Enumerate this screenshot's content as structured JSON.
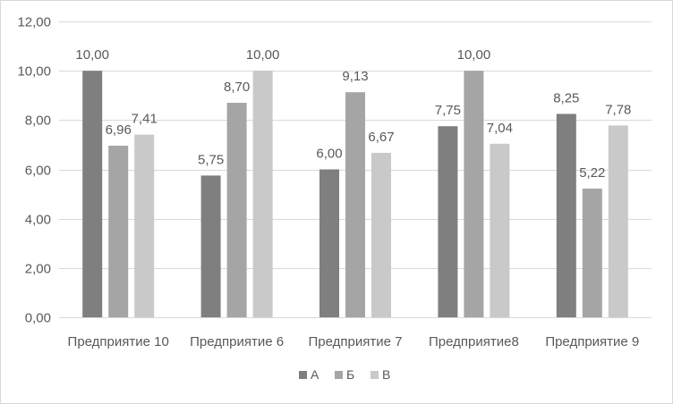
{
  "chart_data": {
    "type": "bar",
    "title": "",
    "xlabel": "",
    "ylabel": "",
    "categories": [
      "Предприятие 10",
      "Предприятие 6",
      "Предприятие 7",
      "Предприятие8",
      "Предприятие 9"
    ],
    "series": [
      {
        "name": "А",
        "color": "#7f7f7f",
        "values": [
          10.0,
          5.75,
          6.0,
          7.75,
          8.25
        ],
        "labels": [
          "10,00",
          "5,75",
          "6,00",
          "7,75",
          "8,25"
        ]
      },
      {
        "name": "Б",
        "color": "#a5a5a5",
        "values": [
          6.96,
          8.7,
          9.13,
          10.0,
          5.22
        ],
        "labels": [
          "6,96",
          "8,70",
          "9,13",
          "10,00",
          "5,22"
        ]
      },
      {
        "name": "В",
        "color": "#c9c9c9",
        "values": [
          7.41,
          10.0,
          6.67,
          7.04,
          7.78
        ],
        "labels": [
          "7,41",
          "10,00",
          "6,67",
          "7,04",
          "7,78"
        ]
      }
    ],
    "ylim": [
      0,
      12
    ],
    "yticks": [
      0,
      2,
      4,
      6,
      8,
      10,
      12
    ],
    "ytick_labels": [
      "0,00",
      "2,00",
      "4,00",
      "6,00",
      "8,00",
      "10,00",
      "12,00"
    ],
    "grid": true,
    "legend_position": "bottom"
  }
}
